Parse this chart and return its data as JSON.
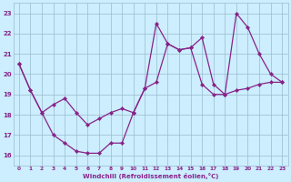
{
  "xlabel": "Windchill (Refroidissement éolien,°C)",
  "bg_color": "#cceeff",
  "line_color": "#882288",
  "grid_color": "#99bbcc",
  "xlim": [
    -0.5,
    23.5
  ],
  "ylim": [
    15.5,
    23.5
  ],
  "yticks": [
    16,
    17,
    18,
    19,
    20,
    21,
    22,
    23
  ],
  "xticks": [
    0,
    1,
    2,
    3,
    4,
    5,
    6,
    7,
    8,
    9,
    10,
    11,
    12,
    13,
    14,
    15,
    16,
    17,
    18,
    19,
    20,
    21,
    22,
    23
  ],
  "series1_x": [
    0,
    1,
    2,
    3,
    4,
    5,
    6,
    7,
    8,
    9,
    10,
    11,
    12,
    13,
    14,
    15,
    16,
    17,
    18,
    19,
    20,
    21,
    22,
    23
  ],
  "series1_y": [
    20.5,
    19.2,
    18.1,
    17.0,
    16.6,
    16.2,
    16.1,
    16.1,
    16.6,
    16.6,
    18.1,
    19.3,
    22.5,
    21.5,
    21.2,
    21.3,
    19.5,
    19.0,
    19.0,
    23.0,
    22.3,
    21.0,
    20.0,
    19.6
  ],
  "series2_x": [
    0,
    1,
    2,
    3,
    4,
    5,
    6,
    7,
    8,
    9,
    10,
    11,
    12,
    13,
    14,
    15,
    16,
    17,
    18,
    19,
    20,
    21,
    22,
    23
  ],
  "series2_y": [
    20.5,
    19.2,
    18.1,
    18.5,
    18.8,
    18.1,
    17.5,
    17.8,
    18.1,
    18.3,
    18.1,
    19.3,
    19.6,
    21.5,
    21.2,
    21.3,
    21.8,
    19.5,
    19.0,
    19.2,
    19.3,
    19.5,
    19.6,
    19.6
  ]
}
